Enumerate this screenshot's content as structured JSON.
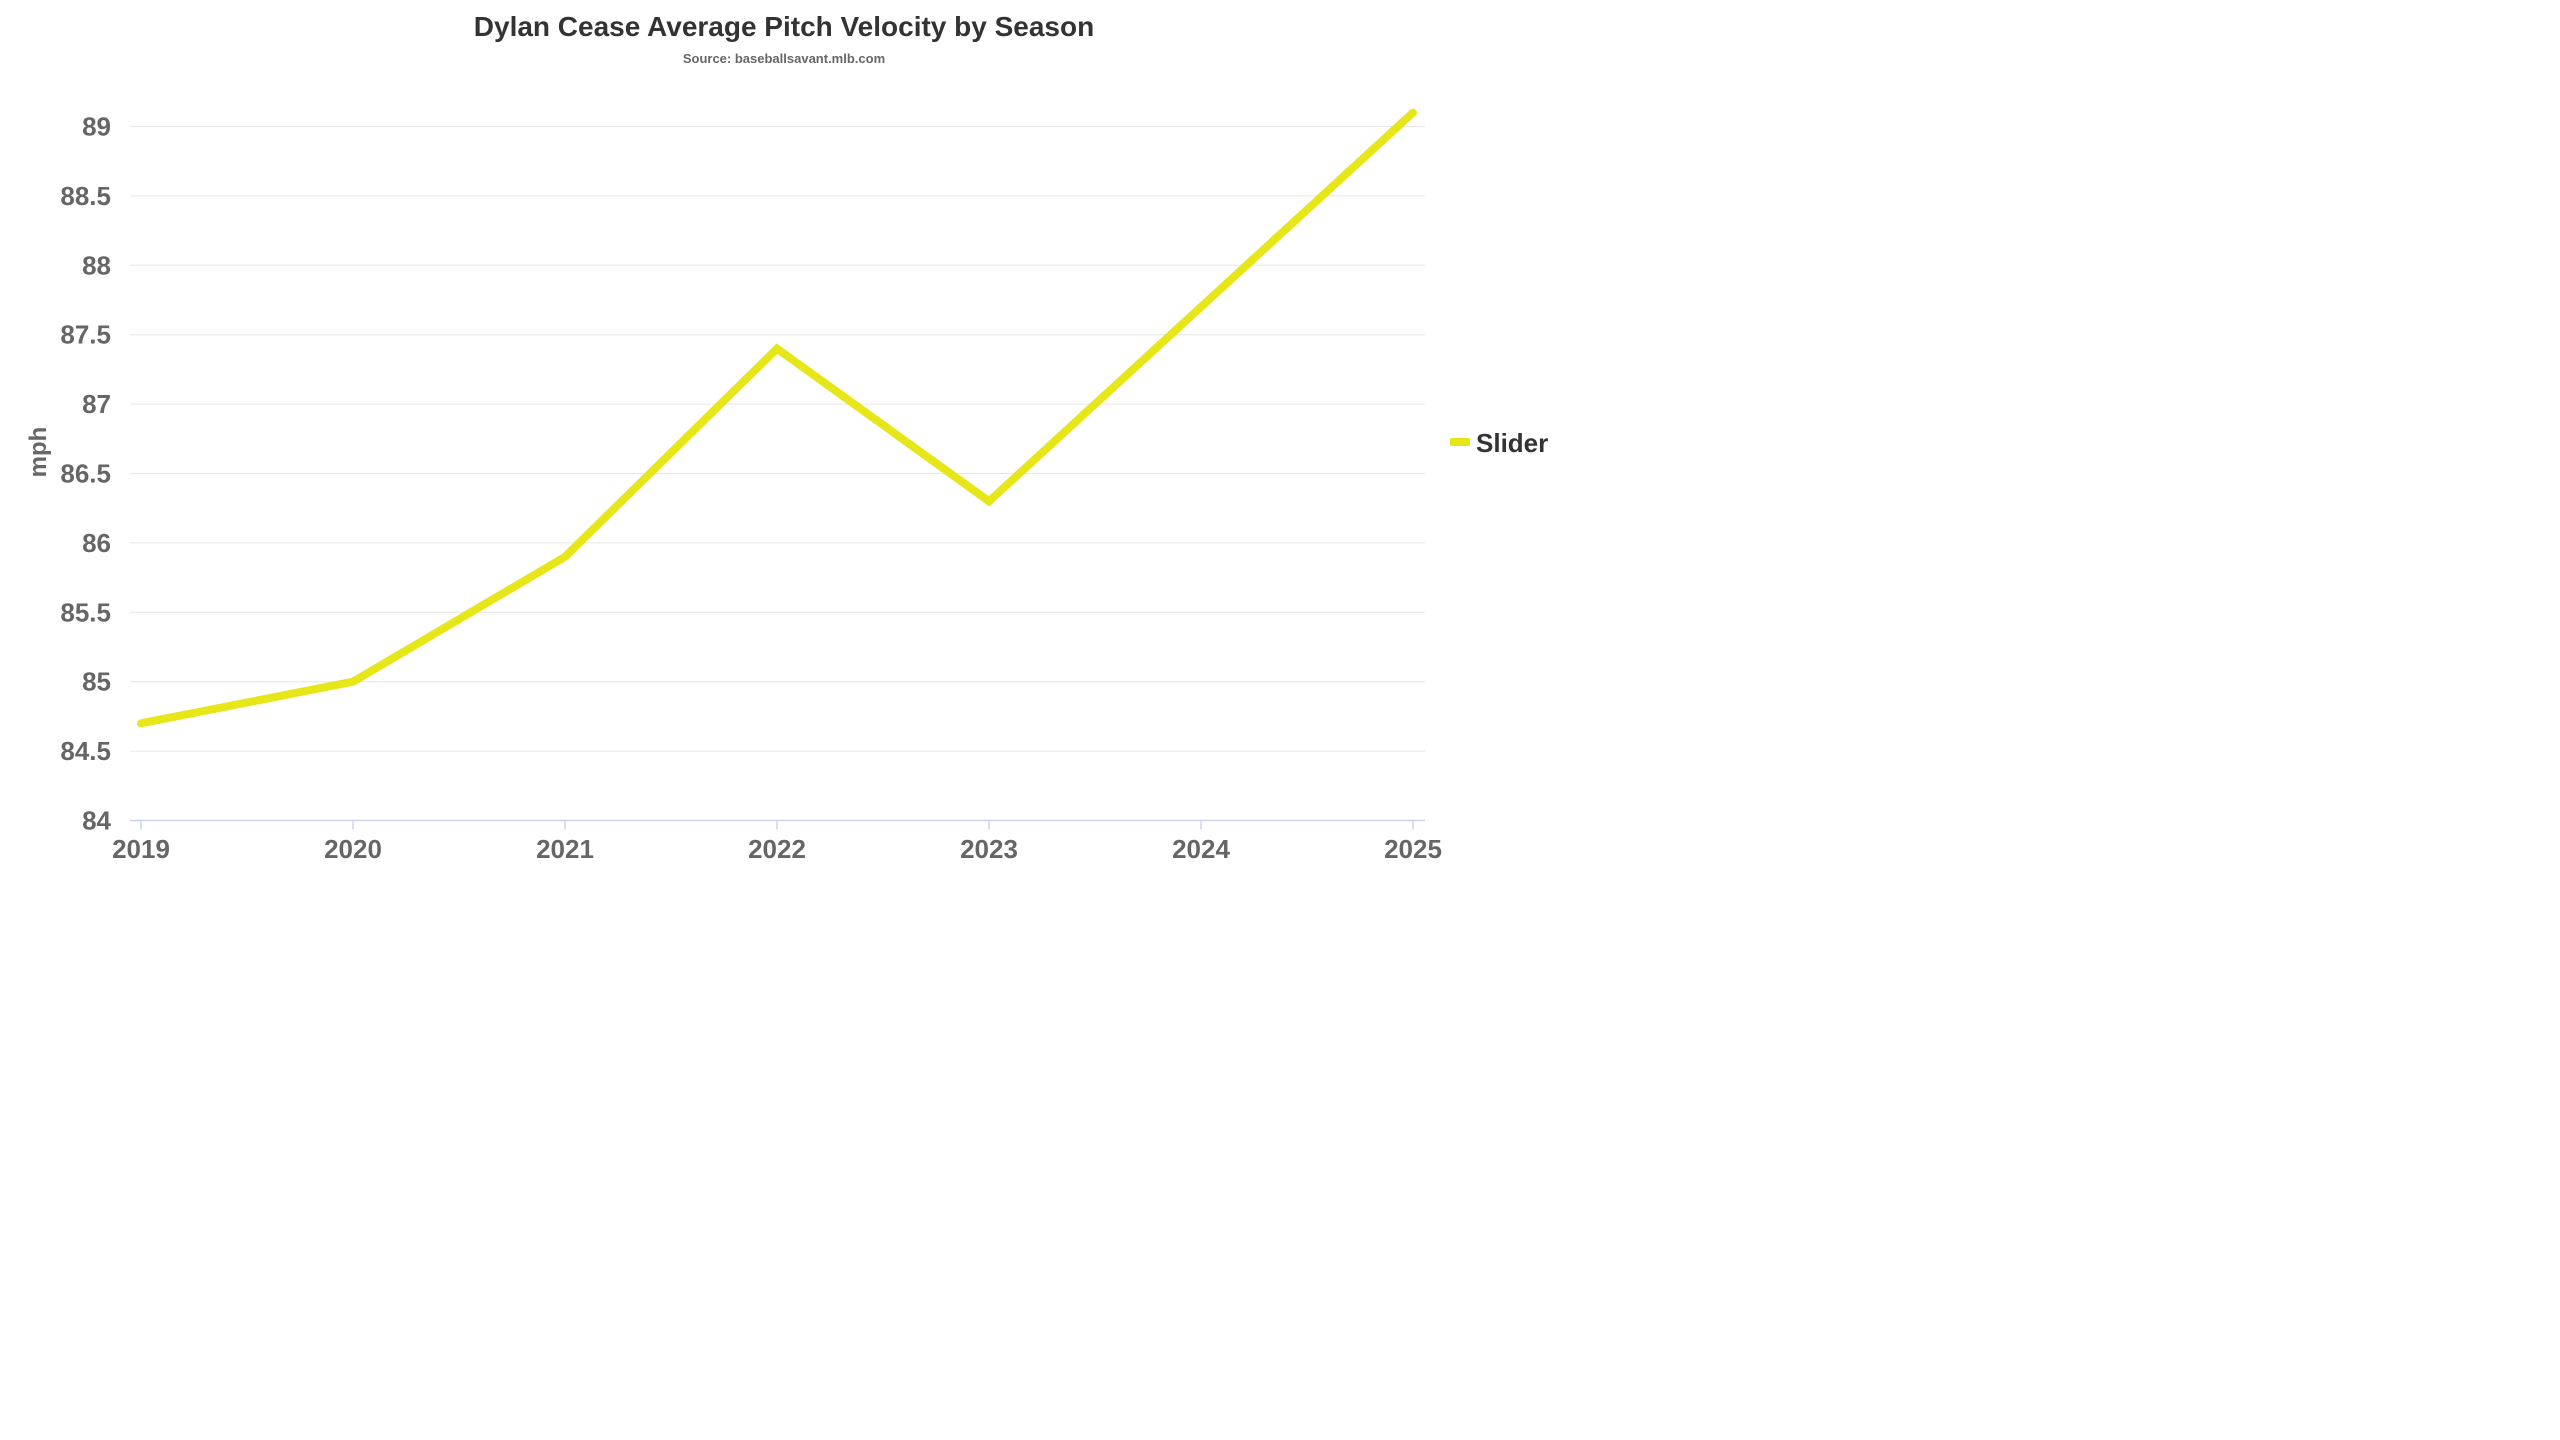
{
  "chart_data": {
    "type": "line",
    "title": "Dylan Cease Average Pitch Velocity by Season",
    "subtitle": "Source: baseballsavant.mlb.com",
    "ylabel": "mph",
    "xlabel": "",
    "categories": [
      "2019",
      "2020",
      "2021",
      "2022",
      "2023",
      "2024",
      "2025"
    ],
    "ylim": [
      84,
      89.1
    ],
    "yticks": [
      "84",
      "84.5",
      "85",
      "85.5",
      "86",
      "86.5",
      "87",
      "87.5",
      "88",
      "88.5",
      "89"
    ],
    "grid": true,
    "legend_position": "right",
    "series": [
      {
        "name": "Slider",
        "values": [
          84.7,
          85.0,
          85.9,
          87.4,
          86.3,
          87.7,
          89.1
        ],
        "color": "#e6e619"
      }
    ]
  }
}
